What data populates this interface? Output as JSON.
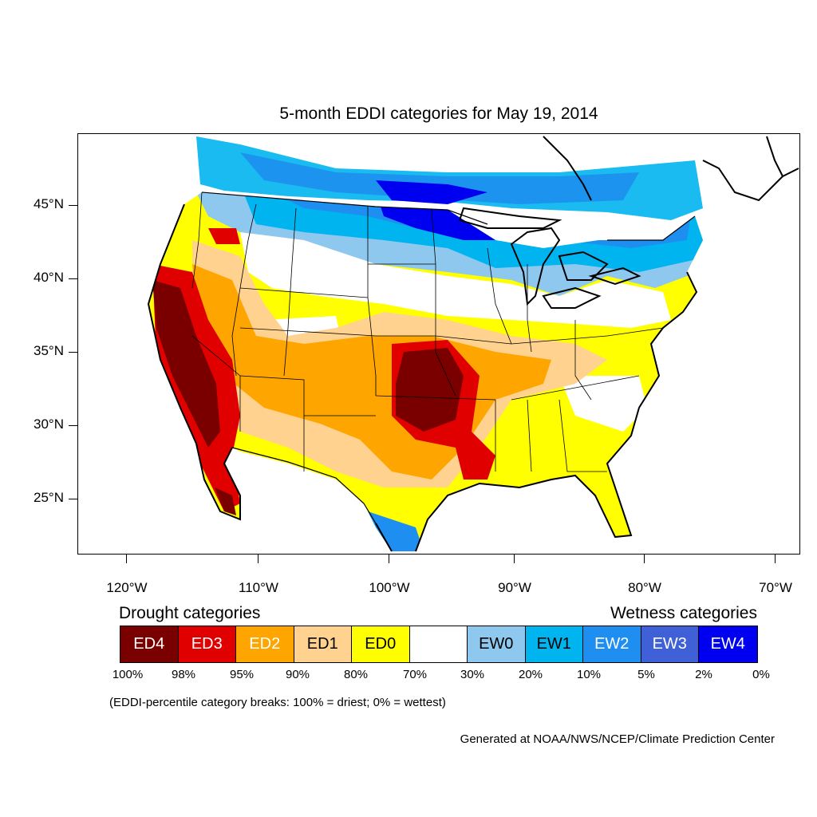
{
  "title": "5-month EDDI categories for May 19, 2014",
  "lat_labels": [
    "45°N",
    "40°N",
    "35°N",
    "30°N",
    "25°N"
  ],
  "lon_labels": [
    "120°W",
    "110°W",
    "100°W",
    "90°W",
    "80°W",
    "70°W"
  ],
  "legend": {
    "drought_heading": "Drought categories",
    "wetness_heading": "Wetness categories",
    "categories": [
      {
        "label": "ED4",
        "color": "#7a0000",
        "text_color": "#ffffff"
      },
      {
        "label": "ED3",
        "color": "#e00000",
        "text_color": "#ffffff"
      },
      {
        "label": "ED2",
        "color": "#ffa500",
        "text_color": "#ffffff"
      },
      {
        "label": "ED1",
        "color": "#ffd38f",
        "text_color": "#000000"
      },
      {
        "label": "ED0",
        "color": "#ffff00",
        "text_color": "#000000"
      },
      {
        "label": "",
        "color": "#ffffff",
        "text_color": "#000000"
      },
      {
        "label": "EW0",
        "color": "#8fc8ef",
        "text_color": "#000000"
      },
      {
        "label": "EW1",
        "color": "#00b4f0",
        "text_color": "#000000"
      },
      {
        "label": "EW2",
        "color": "#1e8ff0",
        "text_color": "#ffffff"
      },
      {
        "label": "EW3",
        "color": "#4060d8",
        "text_color": "#ffffff"
      },
      {
        "label": "EW4",
        "color": "#0000f0",
        "text_color": "#ffffff"
      }
    ],
    "percent_breaks": [
      "100%",
      "98%",
      "95%",
      "90%",
      "80%",
      "70%",
      "30%",
      "20%",
      "10%",
      "5%",
      "2%",
      "0%"
    ],
    "note": "(EDDI-percentile category breaks: 100% = driest; 0% = wettest)"
  },
  "credit": "Generated at NOAA/NWS/NCEP/Climate Prediction Center"
}
